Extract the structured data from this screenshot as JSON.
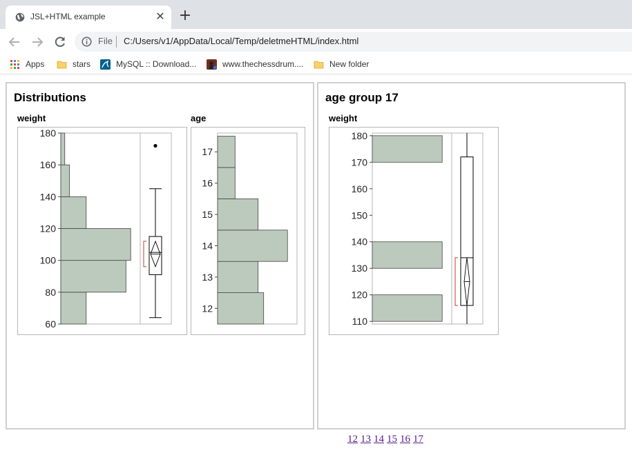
{
  "browser": {
    "tab_title": "JSL+HTML example",
    "tab_close": "✕",
    "new_tab": "+",
    "omnibox_scheme": "File",
    "url": "C:/Users/v1/AppData/Local/Temp/deletmeHTML/index.html",
    "bookmarks": [
      {
        "label": "Apps",
        "icon": "apps-grid-icon"
      },
      {
        "label": "stars",
        "icon": "folder-icon"
      },
      {
        "label": "MySQL :: Download...",
        "icon": "mysql-icon"
      },
      {
        "label": "www.thechessdrum....",
        "icon": "chessdrum-icon"
      },
      {
        "label": "New folder",
        "icon": "folder-icon"
      }
    ]
  },
  "left_panel": {
    "title": "Distributions",
    "weight_label": "weight",
    "age_label": "age"
  },
  "right_panel": {
    "title": "age group 17",
    "weight_label": "weight"
  },
  "pager": [
    "12",
    "13",
    "14",
    "15",
    "16",
    "17"
  ],
  "colors": {
    "bar_fill": "#bccabd",
    "bar_stroke": "#404040",
    "bracket": "#c0392b",
    "link": "#551a8b"
  },
  "chart_data": [
    {
      "type": "histogram",
      "label": "weight",
      "orientation": "horizontal",
      "ylim": [
        60,
        180
      ],
      "yticks": [
        60,
        80,
        100,
        120,
        140,
        160,
        180
      ],
      "bins": [
        {
          "lo": 60,
          "hi": 80,
          "rel": 0.32
        },
        {
          "lo": 80,
          "hi": 100,
          "rel": 0.82
        },
        {
          "lo": 100,
          "hi": 120,
          "rel": 0.88
        },
        {
          "lo": 120,
          "hi": 140,
          "rel": 0.32
        },
        {
          "lo": 140,
          "hi": 160,
          "rel": 0.11
        },
        {
          "lo": 160,
          "hi": 180,
          "rel": 0.05
        }
      ],
      "boxplot": {
        "min": 64,
        "q1": 91,
        "median": 105,
        "q3": 115,
        "max": 145,
        "mean_ci": [
          96,
          112
        ],
        "outliers": [
          172
        ],
        "shortest_half": [
          92,
          113
        ]
      }
    },
    {
      "type": "histogram",
      "label": "age",
      "orientation": "horizontal",
      "ylim": [
        11.5,
        17.6
      ],
      "yticks": [
        12,
        13,
        14,
        15,
        16,
        17
      ],
      "bins": [
        {
          "lo": 11.5,
          "hi": 12.5,
          "rel": 0.58
        },
        {
          "lo": 12.5,
          "hi": 13.5,
          "rel": 0.51
        },
        {
          "lo": 13.5,
          "hi": 14.5,
          "rel": 0.88
        },
        {
          "lo": 14.5,
          "hi": 15.5,
          "rel": 0.51
        },
        {
          "lo": 15.5,
          "hi": 16.5,
          "rel": 0.22
        },
        {
          "lo": 16.5,
          "hi": 17.5,
          "rel": 0.22
        }
      ]
    },
    {
      "type": "histogram",
      "label": "weight",
      "group": "age group 17",
      "orientation": "horizontal",
      "ylim": [
        109,
        181
      ],
      "yticks": [
        110,
        120,
        130,
        140,
        150,
        160,
        170,
        180
      ],
      "bins": [
        {
          "lo": 110,
          "hi": 120,
          "rel": 0.88
        },
        {
          "lo": 130,
          "hi": 140,
          "rel": 0.88
        },
        {
          "lo": 170,
          "hi": 180,
          "rel": 0.88
        }
      ],
      "boxplot": {
        "min": 109,
        "q1": 116,
        "median": 134,
        "q3": 172,
        "max": 181,
        "mean_ci": [
          116,
          134
        ]
      }
    }
  ]
}
